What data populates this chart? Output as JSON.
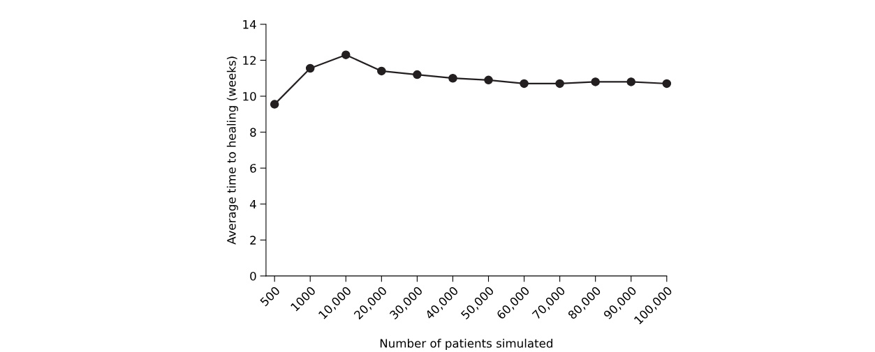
{
  "chart_data": {
    "type": "line",
    "xlabel": "Number of patients simulated",
    "ylabel": "Average time to healing (weeks)",
    "categories": [
      "500",
      "1000",
      "10,000",
      "20,000",
      "30,000",
      "40,000",
      "50,000",
      "60,000",
      "70,000",
      "80,000",
      "90,000",
      "100,000"
    ],
    "series": [
      {
        "color": "#231f20",
        "values": [
          9.55,
          11.55,
          12.3,
          11.4,
          11.2,
          11.0,
          10.9,
          10.7,
          10.7,
          10.8,
          10.8,
          10.7
        ]
      }
    ],
    "ylim": [
      0,
      14
    ],
    "yticks": [
      0,
      2,
      4,
      6,
      8,
      10,
      12,
      14
    ],
    "marker": "circle",
    "line_style": "solid",
    "grid": false
  }
}
